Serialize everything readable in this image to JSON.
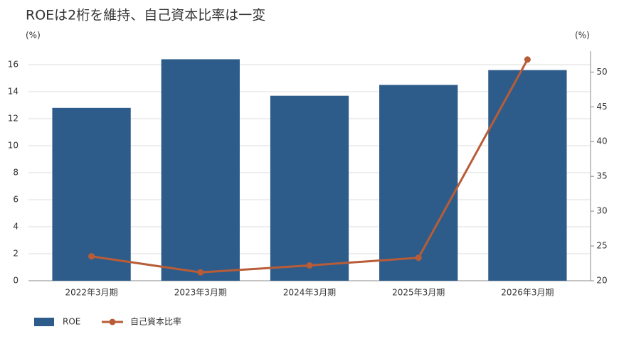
{
  "chart_data": {
    "type": "bar",
    "title": "ROEは2桁を維持、自己資本比率は一変",
    "y_label": "(%)",
    "y2_label": "(%)",
    "categories": [
      "2022年3月期",
      "2023年3月期",
      "2024年3月期",
      "2025年3月期",
      "2026年3月期"
    ],
    "series": [
      {
        "name": "ROE",
        "type": "bar",
        "color": "#2e5c8a",
        "values": [
          12.8,
          16.4,
          13.7,
          14.5,
          15.6
        ]
      },
      {
        "name": "自己資本比率",
        "type": "line",
        "axis": "y2",
        "color": "#b85c38",
        "values": [
          23.5,
          21.2,
          22.2,
          23.3,
          51.8
        ]
      }
    ],
    "ylim": [
      0,
      17
    ],
    "yticks": [
      0,
      2,
      4,
      6,
      8,
      10,
      12,
      14,
      16
    ],
    "y2lim": [
      20,
      53
    ],
    "y2ticks": [
      20,
      25,
      30,
      35,
      40,
      45,
      50
    ],
    "grid": true,
    "legend": "bottom-left"
  }
}
